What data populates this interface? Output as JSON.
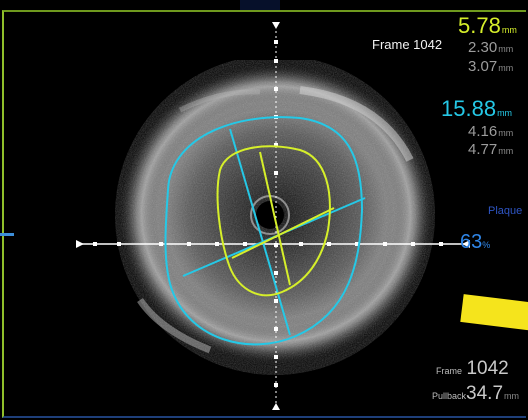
{
  "frame_title": "Frame 1042",
  "lumen": {
    "area": {
      "value": "5.78",
      "unit": "mm"
    },
    "d1": {
      "value": "2.30",
      "unit": "mm"
    },
    "d2": {
      "value": "3.07",
      "unit": "mm"
    }
  },
  "vessel": {
    "area": {
      "value": "15.88",
      "unit": "mm"
    },
    "d1": {
      "value": "4.16",
      "unit": "mm"
    },
    "d2": {
      "value": "4.77",
      "unit": "mm"
    }
  },
  "plaque": {
    "label": "Plaque",
    "value": "63",
    "unit": "%"
  },
  "readout": {
    "frame_label": "Frame",
    "frame_value": "1042",
    "pullback_label": "Pullback",
    "pullback_value": "34.7",
    "pullback_unit": "mm"
  },
  "colors": {
    "lumen": "#d6ef2a",
    "vessel": "#25c8e6",
    "plaque": "#2f86e8",
    "annotation_arrow": "#f5e41c"
  }
}
